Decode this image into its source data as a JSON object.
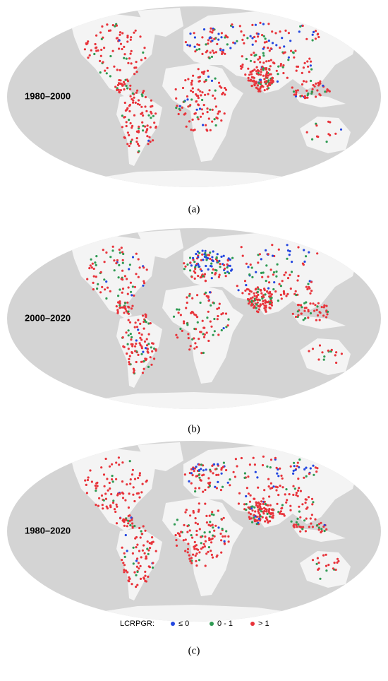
{
  "panels": [
    {
      "label": "1980–2000",
      "caption": "(a)"
    },
    {
      "label": "2000–2020",
      "caption": "(b)"
    },
    {
      "label": "1980–2020",
      "caption": "(c)"
    }
  ],
  "legend": {
    "title": "LCRPGR:",
    "items": [
      {
        "label": "≤ 0",
        "color": "#2447e0"
      },
      {
        "label": "0 - 1",
        "color": "#2e9a52"
      },
      {
        "label": "> 1",
        "color": "#e8333a"
      }
    ]
  }
}
